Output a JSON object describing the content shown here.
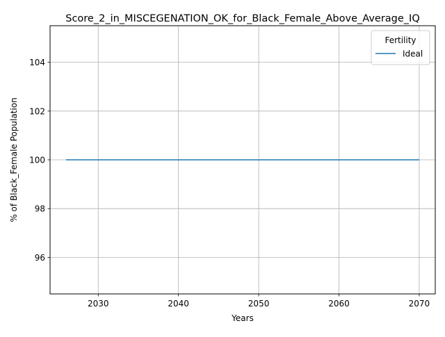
{
  "chart_data": {
    "type": "line",
    "title": "Score_2_in_MISCEGENATION_OK_for_Black_Female_Above_Average_IQ",
    "xlabel": "Years",
    "ylabel": "% of Black_Female Population",
    "xlim": [
      2024,
      2072
    ],
    "ylim": [
      94.5,
      105.5
    ],
    "xticks": [
      2030,
      2040,
      2050,
      2060,
      2070
    ],
    "yticks": [
      96,
      98,
      100,
      102,
      104
    ],
    "grid": true,
    "legend": {
      "title": "Fertility",
      "placement": "upper-right"
    },
    "series": [
      {
        "name": "Ideal",
        "color": "#1f77b4",
        "x": [
          2026,
          2070
        ],
        "y": [
          100,
          100
        ]
      }
    ]
  }
}
